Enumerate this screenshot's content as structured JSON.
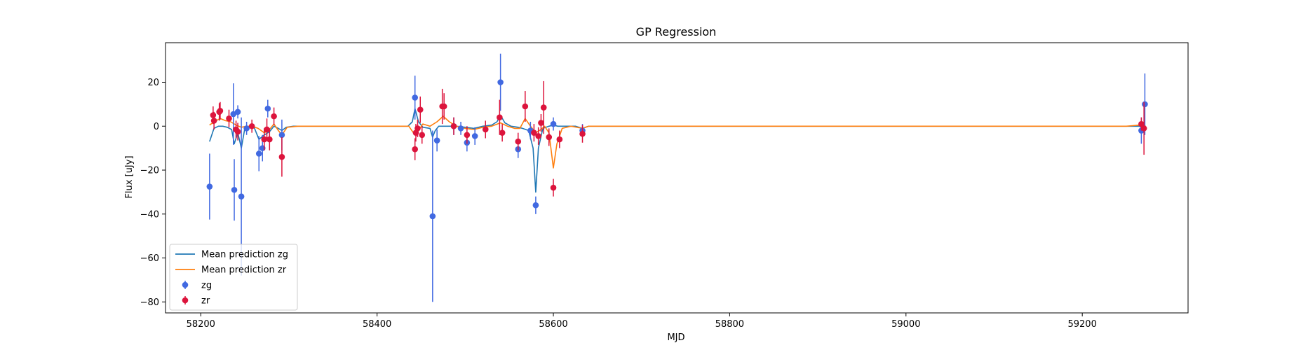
{
  "chart_data": {
    "type": "scatter",
    "title": "GP Regression",
    "xlabel": "MJD",
    "ylabel": "Flux [uJy]",
    "xlim": [
      58160,
      59320
    ],
    "ylim": [
      -85,
      38
    ],
    "xticks": [
      58200,
      58400,
      58600,
      58800,
      59000,
      59200
    ],
    "yticks": [
      -80,
      -60,
      -40,
      -20,
      0,
      20
    ],
    "legend": {
      "placement": "lower-left",
      "entries": [
        {
          "label": "Mean prediction zg",
          "kind": "line",
          "color": "#1f77b4"
        },
        {
          "label": "Mean prediction zr",
          "kind": "line",
          "color": "#ff7f0e"
        },
        {
          "label": "zg",
          "kind": "errorbar",
          "color": "#4169e1"
        },
        {
          "label": "zr",
          "kind": "errorbar",
          "color": "#dc143c"
        }
      ]
    },
    "series": [
      {
        "name": "zg",
        "kind": "errorbar",
        "color": "#4169e1",
        "points": [
          [
            58210,
            -27.5,
            15
          ],
          [
            58237,
            5.5,
            14
          ],
          [
            58238,
            -29,
            14
          ],
          [
            58242,
            6.5,
            3
          ],
          [
            58246,
            -32,
            36
          ],
          [
            58252,
            -1,
            3
          ],
          [
            58266,
            -12.5,
            8
          ],
          [
            58270,
            -10,
            6
          ],
          [
            58276,
            8,
            4
          ],
          [
            58292,
            -4,
            7
          ],
          [
            58443,
            13,
            10
          ],
          [
            58463,
            -41,
            39
          ],
          [
            58468,
            -6.5,
            5
          ],
          [
            58487,
            0,
            4
          ],
          [
            58495,
            -1,
            3
          ],
          [
            58502,
            -7.5,
            4
          ],
          [
            58511,
            -4.5,
            4
          ],
          [
            58540,
            20,
            13
          ],
          [
            58560,
            -10.5,
            4
          ],
          [
            58574,
            -2,
            4
          ],
          [
            58580,
            -36,
            4
          ],
          [
            58600,
            1,
            3
          ],
          [
            58633,
            -2,
            3
          ],
          [
            59267,
            -2,
            6
          ],
          [
            59271,
            10,
            14
          ]
        ]
      },
      {
        "name": "zr",
        "kind": "errorbar",
        "color": "#dc143c",
        "points": [
          [
            58214,
            5,
            4
          ],
          [
            58215,
            2.5,
            4
          ],
          [
            58221,
            6.5,
            4
          ],
          [
            58222,
            7,
            4
          ],
          [
            58232,
            3.5,
            4
          ],
          [
            58240,
            -1.5,
            4
          ],
          [
            58242,
            -2.5,
            4
          ],
          [
            58258,
            0,
            3
          ],
          [
            58272,
            -6,
            5
          ],
          [
            58275,
            -1.5,
            5
          ],
          [
            58278,
            -6,
            5
          ],
          [
            58283,
            4.5,
            4
          ],
          [
            58292,
            -14,
            9
          ],
          [
            58443,
            -10.5,
            5
          ],
          [
            58444,
            -3,
            4
          ],
          [
            58446,
            -1,
            4
          ],
          [
            58449,
            7.5,
            6
          ],
          [
            58451,
            -4,
            4
          ],
          [
            58474,
            9,
            8
          ],
          [
            58476,
            9,
            6
          ],
          [
            58487,
            0,
            4
          ],
          [
            58502,
            -4,
            4
          ],
          [
            58523,
            -1.5,
            4
          ],
          [
            58539,
            4,
            8
          ],
          [
            58542,
            -3,
            4
          ],
          [
            58560,
            -7,
            4
          ],
          [
            58568,
            9,
            7
          ],
          [
            58578,
            -3,
            4
          ],
          [
            58583,
            -4.5,
            4
          ],
          [
            58586,
            1.5,
            4
          ],
          [
            58589,
            8.5,
            12
          ],
          [
            58595,
            -5,
            4
          ],
          [
            58600,
            -28,
            4
          ],
          [
            58607,
            -6,
            4
          ],
          [
            58633,
            -3.5,
            4
          ],
          [
            59267,
            1,
            3
          ],
          [
            59270,
            -1,
            12
          ]
        ]
      },
      {
        "name": "Mean prediction zg",
        "kind": "line",
        "color": "#1f77b4",
        "x": [
          58210,
          58215,
          58220,
          58225,
          58230,
          58235,
          58238,
          58242,
          58246,
          58250,
          58255,
          58260,
          58266,
          58272,
          58278,
          58283,
          58288,
          58292,
          58297,
          58305,
          58320,
          58400,
          58435,
          58440,
          58443,
          58447,
          58452,
          58460,
          58463,
          58466,
          58470,
          58480,
          58490,
          58500,
          58510,
          58520,
          58530,
          58536,
          58540,
          58545,
          58552,
          58560,
          58565,
          58572,
          58577,
          58580,
          58583,
          58588,
          58595,
          58600,
          58605,
          58612,
          58625,
          58633,
          58640,
          58700,
          59000,
          59250,
          59265,
          59272
        ],
        "y": [
          -7,
          -1,
          0,
          0,
          -0.5,
          -1.5,
          -8,
          -3,
          -10,
          -1,
          0,
          0,
          -6,
          -4,
          -2.5,
          0,
          -1,
          -2,
          -0.5,
          0,
          0,
          0,
          0,
          2,
          8,
          2,
          -0.5,
          -1,
          -5,
          -2,
          0,
          0,
          0,
          -0.5,
          -1,
          0,
          0.5,
          2,
          5,
          1.5,
          0,
          -0.5,
          -1,
          -2,
          -10,
          -30,
          -10,
          -1,
          0,
          0.5,
          0,
          0,
          0,
          -1,
          0,
          0,
          0,
          0,
          0,
          -2
        ]
      },
      {
        "name": "Mean prediction zr",
        "kind": "line",
        "color": "#ff7f0e",
        "x": [
          58210,
          58215,
          58222,
          58228,
          58234,
          58240,
          58246,
          58252,
          58258,
          58265,
          58272,
          58277,
          58283,
          58288,
          58292,
          58298,
          58310,
          58400,
          58436,
          58443,
          58447,
          58452,
          58460,
          58468,
          58475,
          58482,
          58490,
          58500,
          58510,
          58520,
          58530,
          58540,
          58548,
          58556,
          58562,
          58568,
          58574,
          58580,
          58586,
          58590,
          58595,
          58600,
          58604,
          58610,
          58620,
          58633,
          58640,
          58700,
          59000,
          59250,
          59265,
          59272
        ],
        "y": [
          0.5,
          2,
          3.5,
          2.5,
          2,
          0.5,
          -0.5,
          0,
          0,
          -1,
          -3,
          -2,
          1,
          -2,
          -4,
          -0.5,
          0,
          0,
          0,
          -4,
          -2,
          1,
          0,
          2,
          4.5,
          2,
          0,
          -1,
          -1.5,
          -0.5,
          0,
          1.5,
          0,
          -1,
          -1,
          3.5,
          0,
          -3,
          -1.5,
          0,
          -3,
          -19,
          -8,
          -1,
          0,
          -1,
          0,
          0,
          0,
          0,
          0.5,
          0
        ]
      }
    ]
  }
}
